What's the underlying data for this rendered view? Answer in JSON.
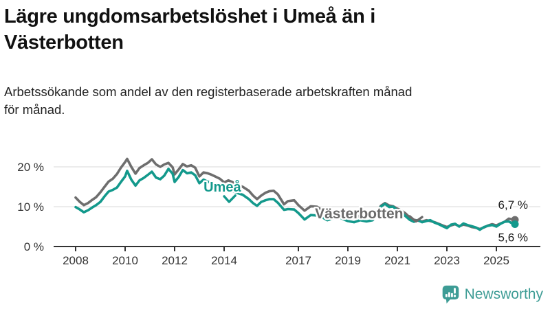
{
  "header": {
    "title": "Lägre ungdomsarbetslöshet i Umeå än i Västerbotten",
    "subtitle": "Arbetssökande som andel av den registerbaserade arbetskraften månad för månad."
  },
  "footer": {
    "brand": "Newsworthy",
    "brand_color": "#3D9C95",
    "logo_icon": "bar-chart-speech-bubble-icon"
  },
  "chart_data": {
    "type": "line",
    "title": "Lägre ungdomsarbetslöshet i Umeå än i Västerbotten",
    "subtitle": "Arbetssökande som andel av den registerbaserade arbetskraften månad för månad.",
    "unit": "%",
    "grid": "horizontal",
    "legend": "inline-labels",
    "x_ticks": [
      2008,
      2010,
      2012,
      2014,
      2017,
      2019,
      2021,
      2023,
      2025
    ],
    "y_ticks": [
      0,
      10,
      20
    ],
    "y_tick_suffix": " %",
    "x_range": [
      2008,
      2025.75
    ],
    "y_range": [
      0,
      24.3
    ],
    "colors": {
      "grid": "#D9D9D9",
      "axis": "#333333"
    },
    "series": [
      {
        "id": "vasterbotten",
        "name": "Västerbotten",
        "color": "#6E6E6E",
        "end_label": "6,7 %",
        "end_value": 6.7,
        "end_label_dy": -16,
        "points": [
          [
            2008.0,
            12.3
          ],
          [
            2008.17,
            11.2
          ],
          [
            2008.33,
            10.4
          ],
          [
            2008.5,
            10.9
          ],
          [
            2008.67,
            11.7
          ],
          [
            2008.83,
            12.4
          ],
          [
            2009.0,
            13.6
          ],
          [
            2009.17,
            15.0
          ],
          [
            2009.33,
            16.3
          ],
          [
            2009.5,
            17.0
          ],
          [
            2009.67,
            18.2
          ],
          [
            2009.83,
            19.8
          ],
          [
            2010.0,
            21.2
          ],
          [
            2010.08,
            22.0
          ],
          [
            2010.25,
            20.0
          ],
          [
            2010.42,
            18.3
          ],
          [
            2010.58,
            19.7
          ],
          [
            2010.75,
            20.4
          ],
          [
            2010.92,
            21.0
          ],
          [
            2011.08,
            21.9
          ],
          [
            2011.25,
            20.6
          ],
          [
            2011.42,
            20.0
          ],
          [
            2011.58,
            20.6
          ],
          [
            2011.75,
            21.0
          ],
          [
            2011.92,
            19.9
          ],
          [
            2012.0,
            18.1
          ],
          [
            2012.17,
            19.4
          ],
          [
            2012.33,
            20.7
          ],
          [
            2012.5,
            20.1
          ],
          [
            2012.67,
            20.4
          ],
          [
            2012.83,
            19.8
          ],
          [
            2013.0,
            17.6
          ],
          [
            2013.17,
            18.6
          ],
          [
            2013.33,
            18.4
          ],
          [
            2013.5,
            18.0
          ],
          [
            2013.67,
            17.5
          ],
          [
            2013.83,
            17.0
          ],
          [
            2014.0,
            16.1
          ],
          [
            2014.17,
            16.6
          ],
          [
            2014.33,
            16.2
          ],
          [
            2014.5,
            15.6
          ],
          [
            2014.75,
            15.0
          ],
          [
            2015.0,
            14.0
          ],
          [
            2015.17,
            12.8
          ],
          [
            2015.33,
            11.9
          ],
          [
            2015.5,
            12.8
          ],
          [
            2015.67,
            13.5
          ],
          [
            2015.83,
            13.9
          ],
          [
            2016.0,
            14.0
          ],
          [
            2016.17,
            13.1
          ],
          [
            2016.42,
            10.6
          ],
          [
            2016.58,
            11.4
          ],
          [
            2016.83,
            11.6
          ],
          [
            2017.0,
            10.4
          ],
          [
            2017.25,
            9.0
          ],
          [
            2017.5,
            10.1
          ],
          [
            2017.75,
            10.0
          ],
          [
            2018.0,
            8.9
          ],
          [
            2018.17,
            8.1
          ],
          [
            2018.42,
            8.5
          ],
          [
            2018.67,
            8.8
          ],
          [
            2018.83,
            8.2
          ],
          [
            2019.0,
            7.7
          ],
          [
            2019.25,
            7.2
          ],
          [
            2019.5,
            7.8
          ],
          [
            2019.75,
            7.4
          ],
          [
            2020.0,
            7.4
          ],
          [
            2020.17,
            8.6
          ],
          [
            2020.33,
            10.2
          ],
          [
            2020.5,
            10.9
          ],
          [
            2020.67,
            10.3
          ],
          [
            2020.83,
            10.1
          ],
          [
            2021.0,
            9.5
          ],
          [
            2021.17,
            9.0
          ],
          [
            2021.33,
            8.3
          ],
          [
            2021.5,
            7.3
          ],
          [
            2021.67,
            6.7
          ],
          [
            2021.83,
            6.5
          ],
          [
            2022.0,
            6.3
          ],
          [
            2022.17,
            6.6
          ],
          [
            2022.33,
            6.4
          ],
          [
            2022.5,
            6.1
          ],
          [
            2022.67,
            5.7
          ],
          [
            2022.83,
            5.3
          ],
          [
            2023.0,
            4.9
          ],
          [
            2023.17,
            5.3
          ],
          [
            2023.33,
            5.6
          ],
          [
            2023.5,
            5.1
          ],
          [
            2023.67,
            5.5
          ],
          [
            2023.83,
            5.3
          ],
          [
            2024.0,
            4.9
          ],
          [
            2024.17,
            4.7
          ],
          [
            2024.33,
            4.4
          ],
          [
            2024.5,
            4.8
          ],
          [
            2024.67,
            5.3
          ],
          [
            2024.83,
            5.6
          ],
          [
            2025.0,
            5.3
          ],
          [
            2025.17,
            5.8
          ],
          [
            2025.33,
            6.2
          ],
          [
            2025.5,
            7.0
          ],
          [
            2025.67,
            6.8
          ],
          [
            2025.75,
            6.7
          ]
        ]
      },
      {
        "id": "umea",
        "name": "Umeå",
        "color": "#13998C",
        "end_label": "5,6 %",
        "end_value": 5.6,
        "end_label_dy": 25,
        "points": [
          [
            2008.0,
            9.9
          ],
          [
            2008.17,
            9.3
          ],
          [
            2008.33,
            8.6
          ],
          [
            2008.5,
            9.1
          ],
          [
            2008.67,
            9.8
          ],
          [
            2008.83,
            10.4
          ],
          [
            2009.0,
            11.2
          ],
          [
            2009.17,
            12.6
          ],
          [
            2009.33,
            13.8
          ],
          [
            2009.5,
            14.2
          ],
          [
            2009.67,
            14.8
          ],
          [
            2009.83,
            16.2
          ],
          [
            2010.0,
            17.6
          ],
          [
            2010.08,
            19.0
          ],
          [
            2010.25,
            16.8
          ],
          [
            2010.42,
            15.3
          ],
          [
            2010.58,
            16.6
          ],
          [
            2010.75,
            17.2
          ],
          [
            2010.92,
            18.0
          ],
          [
            2011.08,
            18.8
          ],
          [
            2011.25,
            17.3
          ],
          [
            2011.42,
            16.9
          ],
          [
            2011.58,
            17.8
          ],
          [
            2011.75,
            19.5
          ],
          [
            2011.92,
            18.3
          ],
          [
            2012.0,
            16.2
          ],
          [
            2012.17,
            17.5
          ],
          [
            2012.33,
            19.2
          ],
          [
            2012.5,
            18.4
          ],
          [
            2012.67,
            18.6
          ],
          [
            2012.83,
            17.9
          ],
          [
            2013.0,
            15.9
          ],
          [
            2013.17,
            16.8
          ],
          [
            2013.33,
            16.3
          ],
          [
            2013.5,
            16.0
          ],
          [
            2013.67,
            15.5
          ],
          [
            2013.83,
            15.0
          ],
          [
            2014.0,
            13.7
          ],
          [
            2014.17,
            14.4
          ],
          [
            2014.33,
            14.0
          ],
          [
            2014.5,
            13.5
          ],
          [
            2014.75,
            13.0
          ],
          [
            2015.0,
            11.9
          ],
          [
            2015.17,
            10.9
          ],
          [
            2015.33,
            10.2
          ],
          [
            2015.5,
            11.2
          ],
          [
            2015.67,
            11.6
          ],
          [
            2015.83,
            11.9
          ],
          [
            2016.0,
            11.9
          ],
          [
            2016.17,
            11.0
          ],
          [
            2016.42,
            9.2
          ],
          [
            2016.58,
            9.4
          ],
          [
            2016.83,
            9.3
          ],
          [
            2017.0,
            8.4
          ],
          [
            2017.25,
            6.8
          ],
          [
            2017.5,
            7.9
          ],
          [
            2017.75,
            7.8
          ],
          [
            2018.0,
            7.2
          ],
          [
            2018.17,
            6.6
          ],
          [
            2018.42,
            7.1
          ],
          [
            2018.67,
            7.3
          ],
          [
            2018.83,
            6.8
          ],
          [
            2019.0,
            6.4
          ],
          [
            2019.25,
            6.1
          ],
          [
            2019.5,
            6.6
          ],
          [
            2019.75,
            6.3
          ],
          [
            2020.0,
            6.6
          ],
          [
            2020.17,
            8.0
          ],
          [
            2020.33,
            10.0
          ],
          [
            2020.5,
            10.7
          ],
          [
            2020.67,
            9.9
          ],
          [
            2020.83,
            10.0
          ],
          [
            2021.0,
            9.0
          ],
          [
            2021.17,
            8.5
          ],
          [
            2021.33,
            7.6
          ],
          [
            2021.5,
            6.7
          ],
          [
            2021.67,
            6.2
          ],
          [
            2021.83,
            6.6
          ],
          [
            2022.0,
            6.1
          ],
          [
            2022.17,
            6.4
          ],
          [
            2022.33,
            6.6
          ],
          [
            2022.5,
            6.0
          ],
          [
            2022.67,
            5.6
          ],
          [
            2022.83,
            5.1
          ],
          [
            2023.0,
            4.6
          ],
          [
            2023.17,
            5.5
          ],
          [
            2023.33,
            5.7
          ],
          [
            2023.5,
            5.0
          ],
          [
            2023.67,
            5.8
          ],
          [
            2023.83,
            5.4
          ],
          [
            2024.0,
            5.1
          ],
          [
            2024.17,
            4.8
          ],
          [
            2024.33,
            4.2
          ],
          [
            2024.5,
            4.9
          ],
          [
            2024.67,
            5.2
          ],
          [
            2024.83,
            5.4
          ],
          [
            2025.0,
            5.0
          ],
          [
            2025.17,
            5.7
          ],
          [
            2025.33,
            6.2
          ],
          [
            2025.5,
            6.3
          ],
          [
            2025.67,
            5.7
          ],
          [
            2025.75,
            5.6
          ]
        ]
      }
    ],
    "annotations": [
      {
        "text": "Umeå",
        "year": 2013.17,
        "pct": 13.8,
        "color": "#13998C",
        "size": 20
      },
      {
        "text": "Västerbotten",
        "year": 2017.67,
        "pct": 7.1,
        "color": "#6B6B6B",
        "size": 21
      }
    ],
    "arrows": [
      {
        "color": "#13998C",
        "points": [
          [
            2014.0,
            12.6
          ],
          [
            2014.2,
            11.2
          ],
          [
            2014.45,
            12.8
          ]
        ]
      },
      {
        "color": "#6B6B6B",
        "points": [
          [
            2021.5,
            7.6
          ],
          [
            2021.75,
            6.3
          ],
          [
            2022.0,
            7.4
          ]
        ]
      }
    ]
  }
}
